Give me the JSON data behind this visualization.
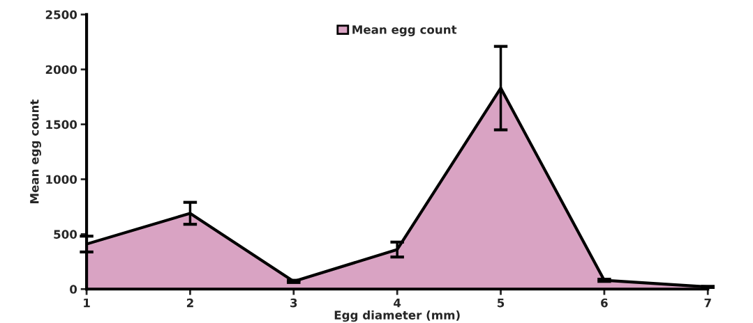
{
  "chart_data": {
    "type": "area",
    "xlabel": "Egg diameter (mm)",
    "ylabel": "Mean egg count",
    "x": [
      1,
      2,
      3,
      4,
      5,
      6,
      7
    ],
    "series": [
      {
        "name": "Mean egg count",
        "color": "#d9a3c3",
        "values": [
          410,
          690,
          70,
          360,
          1830,
          80,
          20
        ],
        "errors": [
          72,
          100,
          10,
          68,
          380,
          10,
          5
        ]
      }
    ],
    "xlim": [
      1,
      7
    ],
    "xticks": [
      1,
      2,
      3,
      4,
      5,
      6,
      7
    ],
    "ylim": [
      0,
      2500
    ],
    "yticks": [
      0,
      500,
      1000,
      1500,
      2000,
      2500
    ],
    "grid": false,
    "legend": "top"
  }
}
